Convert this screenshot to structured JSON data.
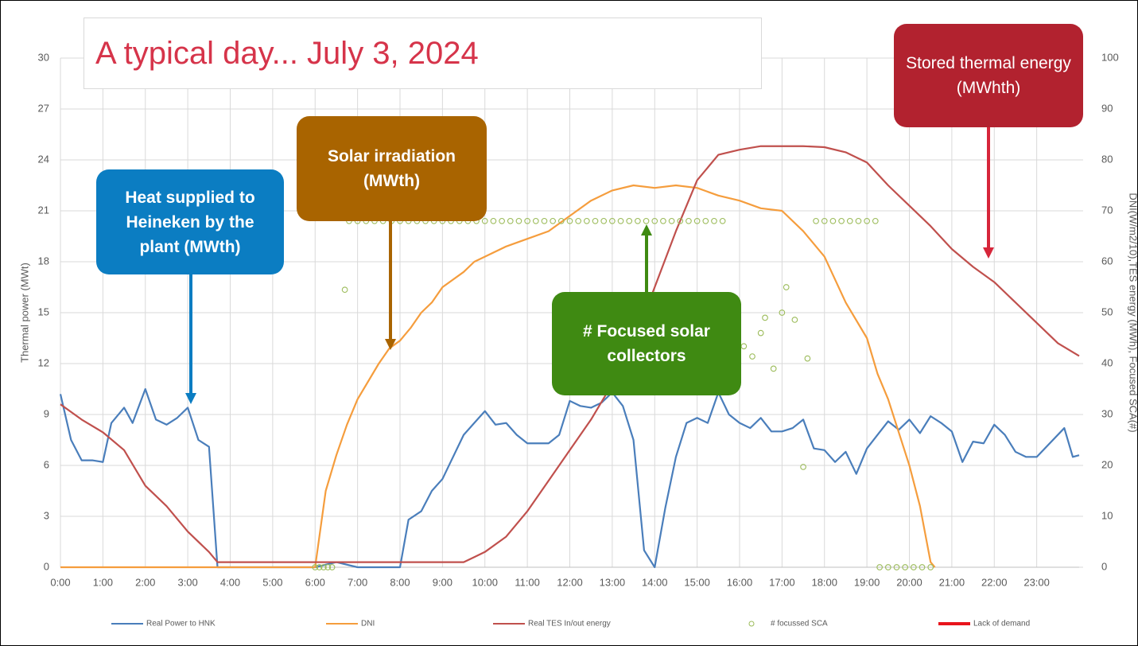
{
  "chart_data": {
    "type": "line",
    "title": "A typical day... July 3, 2024",
    "ylabel": "Thermal power (MWt)",
    "y2label": "DNI(W/m2/10),TES energy (MWh), Focused SCA(#)",
    "xlim": [
      0,
      24
    ],
    "xticks": [
      {
        "value": 0,
        "label": "0:00"
      },
      {
        "value": 1,
        "label": "1:00"
      },
      {
        "value": 2,
        "label": "2:00"
      },
      {
        "value": 3,
        "label": "3:00"
      },
      {
        "value": 4,
        "label": "4:00"
      },
      {
        "value": 5,
        "label": "5:00"
      },
      {
        "value": 6,
        "label": "6:00"
      },
      {
        "value": 7,
        "label": "7:00"
      },
      {
        "value": 8,
        "label": "8:00"
      },
      {
        "value": 9,
        "label": "9:00"
      },
      {
        "value": 10,
        "label": "10:00"
      },
      {
        "value": 11,
        "label": "11:00"
      },
      {
        "value": 12,
        "label": "12:00"
      },
      {
        "value": 13,
        "label": "13:00"
      },
      {
        "value": 14,
        "label": "14:00"
      },
      {
        "value": 15,
        "label": "15:00"
      },
      {
        "value": 16,
        "label": "16:00"
      },
      {
        "value": 17,
        "label": "17:00"
      },
      {
        "value": 18,
        "label": "18:00"
      },
      {
        "value": 19,
        "label": "19:00"
      },
      {
        "value": 20,
        "label": "20:00"
      },
      {
        "value": 21,
        "label": "21:00"
      },
      {
        "value": 22,
        "label": "22:00"
      },
      {
        "value": 23,
        "label": "23:00"
      }
    ],
    "ylim": [
      0,
      30
    ],
    "yticks": [
      0,
      3,
      6,
      9,
      12,
      15,
      18,
      21,
      24,
      27,
      30
    ],
    "y2lim": [
      0,
      100
    ],
    "y2ticks": [
      0,
      10,
      20,
      30,
      40,
      50,
      60,
      70,
      80,
      90,
      100
    ],
    "grid": true,
    "legend": "bottom",
    "series": [
      {
        "name": "Real Power to HNK",
        "color": "#4a7ebb",
        "axis": "y",
        "x": [
          0,
          0.25,
          0.5,
          0.75,
          1,
          1.2,
          1.5,
          1.7,
          2,
          2.25,
          2.5,
          2.75,
          3,
          3.25,
          3.5,
          3.7,
          4,
          5,
          6,
          6.5,
          7,
          8,
          8.2,
          8.5,
          8.75,
          9,
          9.25,
          9.5,
          9.75,
          10,
          10.25,
          10.5,
          10.75,
          11,
          11.5,
          11.75,
          12,
          12.25,
          12.5,
          12.75,
          13,
          13.25,
          13.5,
          13.75,
          14,
          14.25,
          14.5,
          14.75,
          15,
          15.25,
          15.5,
          15.75,
          16,
          16.25,
          16.5,
          16.75,
          17,
          17.25,
          17.5,
          17.75,
          18,
          18.25,
          18.5,
          18.75,
          19,
          19.25,
          19.5,
          19.75,
          20,
          20.25,
          20.5,
          20.75,
          21,
          21.25,
          21.5,
          21.75,
          22,
          22.25,
          22.5,
          22.75,
          23,
          23.65,
          23.85,
          24
        ],
        "values": [
          10.2,
          7.5,
          6.3,
          6.3,
          6.2,
          8.5,
          9.4,
          8.5,
          10.5,
          8.7,
          8.4,
          8.8,
          9.4,
          7.5,
          7.1,
          0,
          0,
          0,
          0,
          0.3,
          0,
          0,
          2.8,
          3.3,
          4.5,
          5.2,
          6.5,
          7.8,
          8.5,
          9.2,
          8.4,
          8.5,
          7.8,
          7.3,
          7.3,
          7.8,
          9.8,
          9.5,
          9.4,
          9.7,
          10.3,
          9.5,
          7.5,
          1,
          0,
          3.5,
          6.5,
          8.5,
          8.8,
          8.5,
          10.3,
          9,
          8.5,
          8.2,
          8.8,
          8.0,
          8.0,
          8.2,
          8.7,
          7.0,
          6.9,
          6.2,
          6.8,
          5.5,
          7.0,
          7.8,
          8.6,
          8.1,
          8.7,
          7.9,
          8.9,
          8.5,
          8.0,
          6.2,
          7.4,
          7.3,
          8.4,
          7.8,
          6.8,
          6.5,
          6.5,
          8.2,
          6.5,
          6.6
        ]
      },
      {
        "name": "DNI",
        "color": "#f59d3d",
        "axis": "y2",
        "x": [
          0,
          6,
          6.25,
          6.5,
          6.75,
          7,
          7.5,
          7.75,
          8,
          8.25,
          8.5,
          8.75,
          9,
          9.5,
          9.75,
          10,
          10.5,
          11,
          11.5,
          12,
          12.5,
          13,
          13.5,
          14,
          14.5,
          15,
          15.5,
          16,
          16.5,
          17,
          17.5,
          18,
          18.5,
          19,
          19.25,
          19.5,
          20,
          20.25,
          20.5,
          20.6
        ],
        "values": [
          0,
          0,
          15,
          22,
          28,
          33,
          40,
          43,
          44.5,
          47,
          50,
          52,
          55,
          58,
          60,
          61,
          63,
          64.5,
          66,
          69,
          72,
          74,
          75,
          74.5,
          75,
          74.5,
          73,
          72,
          70.5,
          70,
          66,
          61,
          52,
          45,
          38,
          33,
          20,
          12,
          1,
          0
        ]
      },
      {
        "name": "Real TES In/out energy",
        "color": "#c0504d",
        "axis": "y2",
        "x": [
          0,
          0.5,
          1,
          1.5,
          2,
          2.5,
          3,
          3.5,
          3.7,
          4,
          9.5,
          9.75,
          10,
          10.5,
          11,
          11.5,
          12,
          12.5,
          13,
          13.5,
          14,
          14.5,
          15,
          15.5,
          16,
          16.5,
          17,
          17.5,
          18,
          18.5,
          19,
          19.5,
          20,
          20.5,
          21,
          21.5,
          22,
          22.5,
          23,
          23.5,
          24
        ],
        "values": [
          32,
          29,
          26.5,
          23,
          16,
          12,
          7,
          3,
          1,
          1,
          1,
          2,
          3,
          6,
          11,
          17,
          23,
          29,
          36,
          44,
          55,
          66,
          76,
          81,
          82,
          82.7,
          82.7,
          82.7,
          82.5,
          81.5,
          79.5,
          75,
          71,
          67,
          62.5,
          59,
          56,
          52,
          48,
          44,
          41.5
        ]
      },
      {
        "name": "# focussed SCA",
        "color": "#9bbb59",
        "axis": "y2",
        "type": "scatter",
        "x": [
          6.0,
          6.1,
          6.2,
          6.3,
          6.4,
          6.7,
          6.8,
          7.0,
          7.2,
          7.4,
          7.6,
          7.8,
          8.0,
          8.2,
          8.4,
          8.6,
          8.8,
          9.0,
          9.2,
          9.4,
          9.6,
          9.8,
          10.0,
          10.2,
          10.4,
          10.6,
          10.8,
          11.0,
          11.2,
          11.4,
          11.6,
          11.8,
          12.0,
          12.2,
          12.4,
          12.6,
          12.8,
          13.0,
          13.2,
          13.4,
          13.6,
          13.8,
          14.0,
          14.2,
          14.4,
          14.6,
          14.8,
          15.0,
          15.2,
          15.4,
          15.6,
          16.1,
          16.3,
          16.5,
          16.6,
          16.8,
          17.0,
          17.1,
          17.3,
          17.5,
          17.6,
          17.8,
          18.0,
          18.2,
          18.4,
          18.6,
          18.8,
          19.0,
          19.2,
          19.3,
          19.5,
          19.7,
          19.9,
          20.1,
          20.3,
          20.5
        ],
        "values": [
          0,
          0,
          0,
          0,
          0,
          54.5,
          68,
          68,
          68,
          68,
          68,
          68,
          68,
          68,
          68,
          68,
          68,
          68,
          68,
          68,
          68,
          68,
          68,
          68,
          68,
          68,
          68,
          68,
          68,
          68,
          68,
          68,
          68,
          68,
          68,
          68,
          68,
          68,
          68,
          68,
          68,
          68,
          68,
          68,
          68,
          68,
          68,
          68,
          68,
          68,
          68,
          43.4,
          41.4,
          46,
          49,
          39,
          50,
          55,
          48.6,
          19.7,
          41,
          68,
          68,
          68,
          68,
          68,
          68,
          68,
          68,
          0,
          0,
          0,
          0,
          0,
          0,
          0
        ]
      },
      {
        "name": "Lack of demand",
        "color": "#e8141c",
        "axis": "y2",
        "x": [],
        "values": []
      }
    ],
    "annotations": [
      {
        "text": "Heat supplied to Heineken by the plant (MWth)",
        "color": "#0b7dc2"
      },
      {
        "text": "Solar irradiation (MWth)",
        "color": "#a96400"
      },
      {
        "text": "# Focused solar collectors",
        "color": "#3f8a12"
      },
      {
        "text": "Stored thermal energy (MWhth)",
        "color": "#b2222f"
      }
    ]
  }
}
